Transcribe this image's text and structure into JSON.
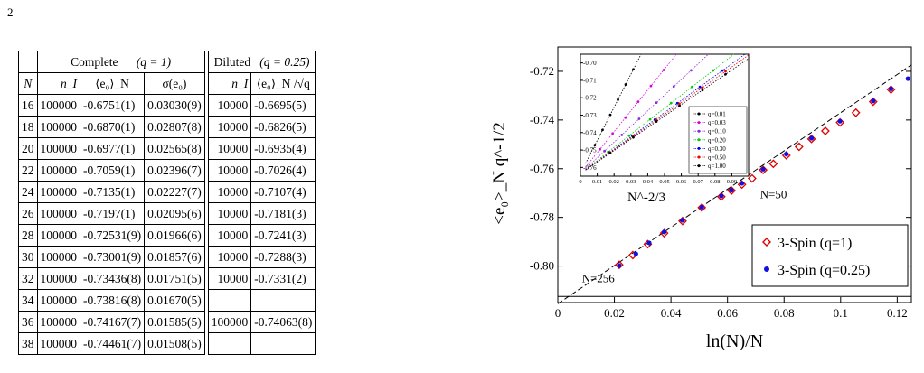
{
  "page": {
    "number": "2"
  },
  "table": {
    "group_headers": {
      "complete": "Complete",
      "complete_q": "(q = 1)",
      "diluted": "Diluted",
      "diluted_q": "(q = 0.25)"
    },
    "columns": [
      "N",
      "n_I",
      "⟨e₀⟩_N",
      "σ(e₀)",
      "n_I",
      "⟨e₀⟩_N /√q"
    ],
    "rows": [
      {
        "N": "16",
        "nI": "100000",
        "e0": "-0.6751(1)",
        "sigma": "0.03030(9)",
        "nId": "10000",
        "e0d": "-0.6695(5)"
      },
      {
        "N": "18",
        "nI": "100000",
        "e0": "-0.6870(1)",
        "sigma": "0.02807(8)",
        "nId": "10000",
        "e0d": "-0.6826(5)"
      },
      {
        "N": "20",
        "nI": "100000",
        "e0": "-0.6977(1)",
        "sigma": "0.02565(8)",
        "nId": "10000",
        "e0d": "-0.6935(4)"
      },
      {
        "N": "22",
        "nI": "100000",
        "e0": "-0.7059(1)",
        "sigma": "0.02396(7)",
        "nId": "10000",
        "e0d": "-0.7026(4)"
      },
      {
        "N": "24",
        "nI": "100000",
        "e0": "-0.7135(1)",
        "sigma": "0.02227(7)",
        "nId": "10000",
        "e0d": "-0.7107(4)"
      },
      {
        "N": "26",
        "nI": "100000",
        "e0": "-0.7197(1)",
        "sigma": "0.02095(6)",
        "nId": "10000",
        "e0d": "-0.7181(3)"
      },
      {
        "N": "28",
        "nI": "100000",
        "e0": "-0.72531(9)",
        "sigma": "0.01966(6)",
        "nId": "10000",
        "e0d": "-0.7241(3)"
      },
      {
        "N": "30",
        "nI": "100000",
        "e0": "-0.73001(9)",
        "sigma": "0.01857(6)",
        "nId": "10000",
        "e0d": "-0.7288(3)"
      },
      {
        "N": "32",
        "nI": "100000",
        "e0": "-0.73436(8)",
        "sigma": "0.01751(5)",
        "nId": "10000",
        "e0d": "-0.7331(2)"
      },
      {
        "N": "34",
        "nI": "100000",
        "e0": "-0.73816(8)",
        "sigma": "0.01670(5)",
        "nId": "",
        "e0d": ""
      },
      {
        "N": "36",
        "nI": "100000",
        "e0": "-0.74167(7)",
        "sigma": "0.01585(5)",
        "nId": "100000",
        "e0d": "-0.74063(8)"
      },
      {
        "N": "38",
        "nI": "100000",
        "e0": "-0.74461(7)",
        "sigma": "0.01508(5)",
        "nId": "",
        "e0d": ""
      }
    ]
  },
  "chart_data": {
    "type": "scatter",
    "xlabel": "ln(N)/N",
    "ylabel": "<e₀>_N q^-1/2",
    "xlim": [
      0,
      0.125
    ],
    "ylim": [
      -0.815,
      -0.71
    ],
    "xticks": [
      "0",
      "0.02",
      "0.04",
      "0.06",
      "0.08",
      "0.1",
      "0.12"
    ],
    "yticks": [
      "-0.72",
      "-0.74",
      "-0.76",
      "-0.78",
      "-0.80"
    ],
    "annotations": [
      "N=50",
      "N=256"
    ],
    "legend_position": "bottom-right",
    "series": [
      {
        "name": "3-Spin (q=1)",
        "color": "#e00000",
        "marker": "open-diamond",
        "points": [
          [
            0.0217,
            -0.7995
          ],
          [
            0.0265,
            -0.7955
          ],
          [
            0.0318,
            -0.791
          ],
          [
            0.0376,
            -0.7865
          ],
          [
            0.0441,
            -0.7815
          ],
          [
            0.0509,
            -0.776
          ],
          [
            0.0578,
            -0.7715
          ],
          [
            0.0614,
            -0.769
          ],
          [
            0.0651,
            -0.7665
          ],
          [
            0.0687,
            -0.764
          ],
          [
            0.0726,
            -0.7605
          ],
          [
            0.0762,
            -0.758
          ],
          [
            0.0808,
            -0.7545
          ],
          [
            0.0853,
            -0.751
          ],
          [
            0.0897,
            -0.7478
          ],
          [
            0.0946,
            -0.7445
          ],
          [
            0.0998,
            -0.741
          ],
          [
            0.1054,
            -0.737
          ],
          [
            0.1115,
            -0.7325
          ],
          [
            0.1178,
            -0.7275
          ]
        ]
      },
      {
        "name": "3-Spin (q=0.25)",
        "color": "#1010e0",
        "marker": "filled-circle",
        "points": [
          [
            0.0217,
            -0.7998
          ],
          [
            0.0276,
            -0.795
          ],
          [
            0.0323,
            -0.7905
          ],
          [
            0.0376,
            -0.786
          ],
          [
            0.0441,
            -0.7812
          ],
          [
            0.0509,
            -0.7758
          ],
          [
            0.0578,
            -0.7712
          ],
          [
            0.0614,
            -0.7688
          ],
          [
            0.0651,
            -0.766
          ],
          [
            0.0726,
            -0.7602
          ],
          [
            0.0808,
            -0.754
          ],
          [
            0.0897,
            -0.7475
          ],
          [
            0.0998,
            -0.7405
          ],
          [
            0.1115,
            -0.7322
          ],
          [
            0.1178,
            -0.7272
          ],
          [
            0.1238,
            -0.723
          ]
        ]
      }
    ],
    "fit_line": {
      "intercept": -0.8155,
      "slope": 0.785
    },
    "inset": {
      "xlabel": "N^-2/3",
      "xlim": [
        0,
        0.1
      ],
      "ylim": [
        -0.765,
        -0.695
      ],
      "xticks": [
        "0",
        "0.01",
        "0.02",
        "0.03",
        "0.04",
        "0.05",
        "0.06",
        "0.07",
        "0.08",
        "0.09"
      ],
      "yticks": [
        "-0.70",
        "-0.71",
        "-0.72",
        "-0.73",
        "-0.74",
        "-0.75",
        "-0.76"
      ],
      "legend": [
        {
          "name": "q=0.01",
          "color": "#000000"
        },
        {
          "name": "q=0.03",
          "color": "#e000e0"
        },
        {
          "name": "q=0.10",
          "color": "#8a2be2"
        },
        {
          "name": "q=0.20",
          "color": "#00cc00"
        },
        {
          "name": "q=0.30",
          "color": "#0000ee"
        },
        {
          "name": "q=0.50",
          "color": "#ee0000"
        },
        {
          "name": "q=1.00",
          "color": "#000000"
        }
      ]
    }
  }
}
